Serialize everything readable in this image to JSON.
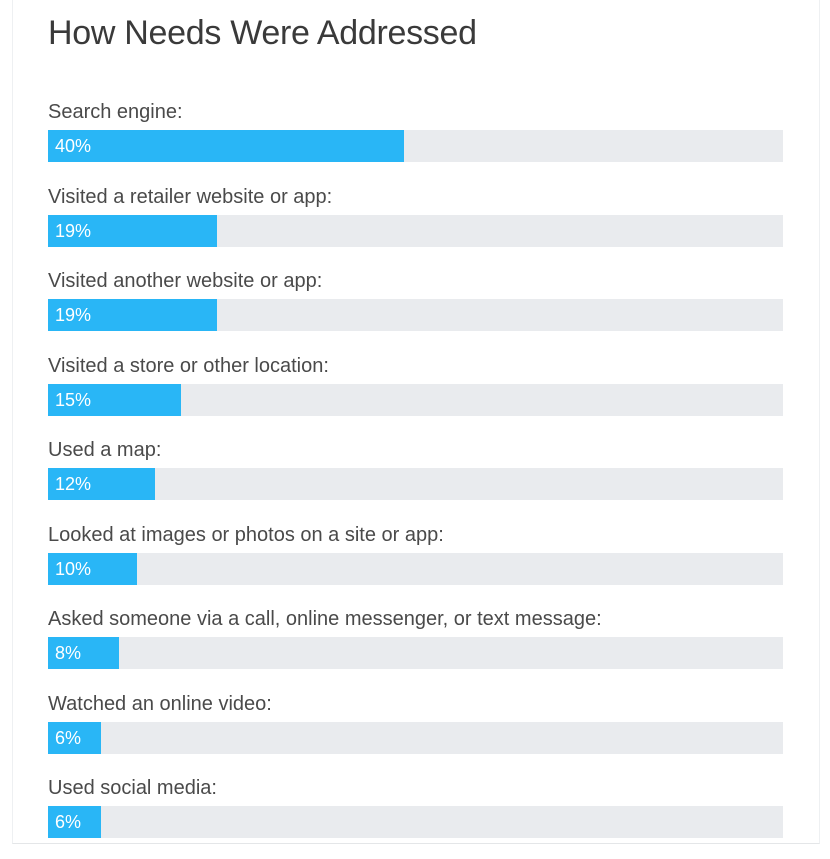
{
  "chart_data": {
    "type": "bar",
    "orientation": "horizontal",
    "title": "How Needs Were Addressed",
    "categories": [
      "Search engine:",
      "Visited a retailer website or app:",
      "Visited another website or app:",
      "Visited a store or other location:",
      "Used a map:",
      "Looked at images or photos on a site or app:",
      "Asked someone via a call, online messenger, or text message:",
      "Watched an online video:",
      "Used social media:"
    ],
    "values": [
      40,
      19,
      19,
      15,
      12,
      10,
      8,
      6,
      6
    ],
    "value_labels": [
      "40%",
      "19%",
      "19%",
      "15%",
      "12%",
      "10%",
      "8%",
      "6%",
      "6%"
    ],
    "xlim": [
      0,
      82.7
    ],
    "grid": false,
    "colors": {
      "bar": "#29b6f6",
      "track": "#e9ebee",
      "title": "#3a3a3a",
      "label": "#4a4a4a",
      "value_label": "#ffffff"
    }
  }
}
